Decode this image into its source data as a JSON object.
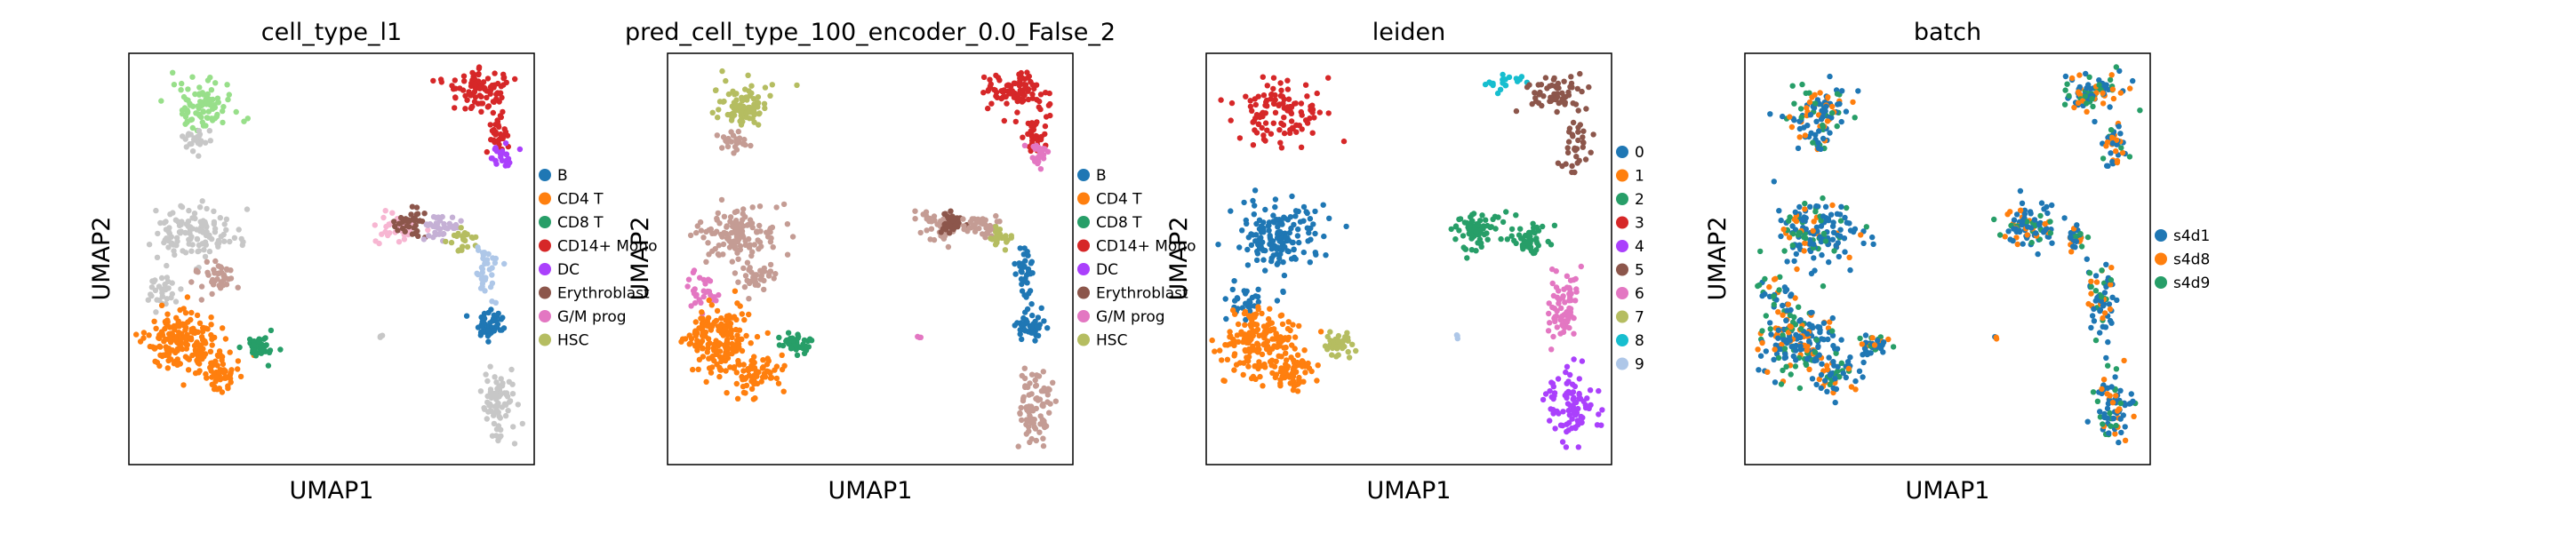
{
  "figure": {
    "background": "#ffffff"
  },
  "chart_data": [
    {
      "type": "scatter",
      "title": "cell_type_l1",
      "xlabel": "UMAP1",
      "ylabel": "UMAP2",
      "grid": false,
      "legend_position": "right",
      "legend": [
        {
          "label": "B",
          "color": "#1f77b4"
        },
        {
          "label": "CD4 T",
          "color": "#ff7f0e"
        },
        {
          "label": "CD8 T",
          "color": "#279e68"
        },
        {
          "label": "CD14+ Mono",
          "color": "#d62728"
        },
        {
          "label": "DC",
          "color": "#aa40fc"
        },
        {
          "label": "Erythroblast",
          "color": "#8c564b"
        },
        {
          "label": "G/M prog",
          "color": "#e377c2"
        },
        {
          "label": "HSC",
          "color": "#b5bd61"
        }
      ],
      "clusters": [
        {
          "x": 0.18,
          "y": 0.87,
          "rx": 0.09,
          "ry": 0.06,
          "color": "#98df8a",
          "n": 90
        },
        {
          "x": 0.17,
          "y": 0.79,
          "rx": 0.04,
          "ry": 0.03,
          "color": "#c7c7c7",
          "n": 25
        },
        {
          "x": 0.86,
          "y": 0.91,
          "rx": 0.09,
          "ry": 0.05,
          "color": "#d62728",
          "n": 90
        },
        {
          "x": 0.91,
          "y": 0.8,
          "rx": 0.04,
          "ry": 0.06,
          "color": "#d62728",
          "n": 35
        },
        {
          "x": 0.92,
          "y": 0.75,
          "rx": 0.03,
          "ry": 0.04,
          "color": "#aa40fc",
          "n": 25
        },
        {
          "x": 0.17,
          "y": 0.56,
          "rx": 0.11,
          "ry": 0.07,
          "color": "#c7c7c7",
          "n": 120
        },
        {
          "x": 0.22,
          "y": 0.46,
          "rx": 0.06,
          "ry": 0.04,
          "color": "#c49c94",
          "n": 40
        },
        {
          "x": 0.08,
          "y": 0.42,
          "rx": 0.05,
          "ry": 0.05,
          "color": "#c7c7c7",
          "n": 30
        },
        {
          "x": 0.13,
          "y": 0.3,
          "rx": 0.1,
          "ry": 0.09,
          "color": "#ff7f0e",
          "n": 170
        },
        {
          "x": 0.22,
          "y": 0.22,
          "rx": 0.07,
          "ry": 0.05,
          "color": "#ff7f0e",
          "n": 60
        },
        {
          "x": 0.32,
          "y": 0.29,
          "rx": 0.04,
          "ry": 0.03,
          "color": "#279e68",
          "n": 40
        },
        {
          "x": 0.67,
          "y": 0.58,
          "rx": 0.06,
          "ry": 0.04,
          "color": "#f7b6d2",
          "n": 45
        },
        {
          "x": 0.7,
          "y": 0.59,
          "rx": 0.04,
          "ry": 0.04,
          "color": "#8c564b",
          "n": 35
        },
        {
          "x": 0.77,
          "y": 0.58,
          "rx": 0.05,
          "ry": 0.03,
          "color": "#c5b0d5",
          "n": 40
        },
        {
          "x": 0.82,
          "y": 0.55,
          "rx": 0.04,
          "ry": 0.03,
          "color": "#b5bd61",
          "n": 25
        },
        {
          "x": 0.88,
          "y": 0.47,
          "rx": 0.03,
          "ry": 0.07,
          "color": "#aec7e8",
          "n": 35
        },
        {
          "x": 0.89,
          "y": 0.34,
          "rx": 0.04,
          "ry": 0.04,
          "color": "#1f77b4",
          "n": 45
        },
        {
          "x": 0.91,
          "y": 0.14,
          "rx": 0.05,
          "ry": 0.09,
          "color": "#c7c7c7",
          "n": 80
        },
        {
          "x": 0.62,
          "y": 0.31,
          "rx": 0.006,
          "ry": 0.006,
          "color": "#c7c7c7",
          "n": 3
        }
      ]
    },
    {
      "type": "scatter",
      "title": "pred_cell_type_100_encoder_0.0_False_2",
      "xlabel": "UMAP1",
      "ylabel": "UMAP2",
      "grid": false,
      "legend_position": "right",
      "legend": [
        {
          "label": "B",
          "color": "#1f77b4"
        },
        {
          "label": "CD4 T",
          "color": "#ff7f0e"
        },
        {
          "label": "CD8 T",
          "color": "#279e68"
        },
        {
          "label": "CD14+ Mono",
          "color": "#d62728"
        },
        {
          "label": "DC",
          "color": "#aa40fc"
        },
        {
          "label": "Erythroblast",
          "color": "#8c564b"
        },
        {
          "label": "G/M prog",
          "color": "#e377c2"
        },
        {
          "label": "HSC",
          "color": "#b5bd61"
        }
      ],
      "clusters": [
        {
          "x": 0.18,
          "y": 0.87,
          "rx": 0.09,
          "ry": 0.06,
          "color": "#b5bd61",
          "n": 90
        },
        {
          "x": 0.17,
          "y": 0.79,
          "rx": 0.04,
          "ry": 0.03,
          "color": "#c49c94",
          "n": 25
        },
        {
          "x": 0.86,
          "y": 0.91,
          "rx": 0.09,
          "ry": 0.05,
          "color": "#d62728",
          "n": 90
        },
        {
          "x": 0.91,
          "y": 0.8,
          "rx": 0.04,
          "ry": 0.06,
          "color": "#d62728",
          "n": 35
        },
        {
          "x": 0.92,
          "y": 0.75,
          "rx": 0.03,
          "ry": 0.04,
          "color": "#e377c2",
          "n": 25
        },
        {
          "x": 0.17,
          "y": 0.56,
          "rx": 0.11,
          "ry": 0.07,
          "color": "#c49c94",
          "n": 120
        },
        {
          "x": 0.22,
          "y": 0.46,
          "rx": 0.06,
          "ry": 0.04,
          "color": "#c49c94",
          "n": 40
        },
        {
          "x": 0.08,
          "y": 0.42,
          "rx": 0.05,
          "ry": 0.05,
          "color": "#e377c2",
          "n": 30
        },
        {
          "x": 0.13,
          "y": 0.3,
          "rx": 0.1,
          "ry": 0.09,
          "color": "#ff7f0e",
          "n": 170
        },
        {
          "x": 0.22,
          "y": 0.22,
          "rx": 0.07,
          "ry": 0.05,
          "color": "#ff7f0e",
          "n": 60
        },
        {
          "x": 0.32,
          "y": 0.29,
          "rx": 0.04,
          "ry": 0.03,
          "color": "#279e68",
          "n": 40
        },
        {
          "x": 0.67,
          "y": 0.58,
          "rx": 0.06,
          "ry": 0.04,
          "color": "#c49c94",
          "n": 45
        },
        {
          "x": 0.7,
          "y": 0.59,
          "rx": 0.04,
          "ry": 0.04,
          "color": "#8c564b",
          "n": 35
        },
        {
          "x": 0.77,
          "y": 0.58,
          "rx": 0.05,
          "ry": 0.03,
          "color": "#c49c94",
          "n": 40
        },
        {
          "x": 0.82,
          "y": 0.55,
          "rx": 0.04,
          "ry": 0.03,
          "color": "#b5bd61",
          "n": 25
        },
        {
          "x": 0.88,
          "y": 0.47,
          "rx": 0.03,
          "ry": 0.07,
          "color": "#1f77b4",
          "n": 35
        },
        {
          "x": 0.89,
          "y": 0.34,
          "rx": 0.04,
          "ry": 0.04,
          "color": "#1f77b4",
          "n": 45
        },
        {
          "x": 0.91,
          "y": 0.14,
          "rx": 0.05,
          "ry": 0.09,
          "color": "#c49c94",
          "n": 80
        },
        {
          "x": 0.62,
          "y": 0.31,
          "rx": 0.006,
          "ry": 0.006,
          "color": "#e377c2",
          "n": 3
        }
      ]
    },
    {
      "type": "scatter",
      "title": "leiden",
      "xlabel": "UMAP1",
      "ylabel": "UMAP2",
      "grid": false,
      "legend_position": "right",
      "legend": [
        {
          "label": "0",
          "color": "#1f77b4"
        },
        {
          "label": "1",
          "color": "#ff7f0e"
        },
        {
          "label": "2",
          "color": "#279e68"
        },
        {
          "label": "3",
          "color": "#d62728"
        },
        {
          "label": "4",
          "color": "#aa40fc"
        },
        {
          "label": "5",
          "color": "#8c564b"
        },
        {
          "label": "6",
          "color": "#e377c2"
        },
        {
          "label": "7",
          "color": "#b5bd61"
        },
        {
          "label": "8",
          "color": "#17becf"
        },
        {
          "label": "9",
          "color": "#aec7e8"
        }
      ],
      "clusters": [
        {
          "x": 0.18,
          "y": 0.85,
          "rx": 0.12,
          "ry": 0.08,
          "color": "#d62728",
          "n": 110
        },
        {
          "x": 0.74,
          "y": 0.93,
          "rx": 0.07,
          "ry": 0.02,
          "color": "#17becf",
          "n": 20
        },
        {
          "x": 0.86,
          "y": 0.9,
          "rx": 0.07,
          "ry": 0.05,
          "color": "#8c564b",
          "n": 60
        },
        {
          "x": 0.91,
          "y": 0.78,
          "rx": 0.04,
          "ry": 0.07,
          "color": "#8c564b",
          "n": 35
        },
        {
          "x": 0.17,
          "y": 0.55,
          "rx": 0.12,
          "ry": 0.09,
          "color": "#1f77b4",
          "n": 150
        },
        {
          "x": 0.1,
          "y": 0.4,
          "rx": 0.05,
          "ry": 0.05,
          "color": "#1f77b4",
          "n": 30
        },
        {
          "x": 0.13,
          "y": 0.3,
          "rx": 0.1,
          "ry": 0.09,
          "color": "#ff7f0e",
          "n": 170
        },
        {
          "x": 0.22,
          "y": 0.22,
          "rx": 0.07,
          "ry": 0.05,
          "color": "#ff7f0e",
          "n": 60
        },
        {
          "x": 0.32,
          "y": 0.29,
          "rx": 0.04,
          "ry": 0.03,
          "color": "#b5bd61",
          "n": 40
        },
        {
          "x": 0.66,
          "y": 0.57,
          "rx": 0.07,
          "ry": 0.05,
          "color": "#279e68",
          "n": 70
        },
        {
          "x": 0.8,
          "y": 0.55,
          "rx": 0.06,
          "ry": 0.04,
          "color": "#279e68",
          "n": 45
        },
        {
          "x": 0.88,
          "y": 0.38,
          "rx": 0.04,
          "ry": 0.11,
          "color": "#e377c2",
          "n": 70
        },
        {
          "x": 0.9,
          "y": 0.15,
          "rx": 0.06,
          "ry": 0.09,
          "color": "#aa40fc",
          "n": 90
        },
        {
          "x": 0.62,
          "y": 0.31,
          "rx": 0.006,
          "ry": 0.006,
          "color": "#aec7e8",
          "n": 3
        }
      ]
    },
    {
      "type": "scatter",
      "title": "batch",
      "xlabel": "UMAP1",
      "ylabel": "UMAP2",
      "grid": false,
      "legend_position": "right",
      "legend": [
        {
          "label": "s4d1",
          "color": "#1f77b4"
        },
        {
          "label": "s4d8",
          "color": "#ff7f0e"
        },
        {
          "label": "s4d9",
          "color": "#279e68"
        }
      ],
      "mix": [
        {
          "color": "#1f77b4",
          "weight": 0.55
        },
        {
          "color": "#ff7f0e",
          "weight": 0.25
        },
        {
          "color": "#279e68",
          "weight": 0.2
        }
      ],
      "clusters": [
        {
          "x": 0.18,
          "y": 0.87,
          "rx": 0.09,
          "ry": 0.06,
          "n": 90
        },
        {
          "x": 0.17,
          "y": 0.79,
          "rx": 0.04,
          "ry": 0.03,
          "n": 25
        },
        {
          "x": 0.86,
          "y": 0.91,
          "rx": 0.09,
          "ry": 0.05,
          "n": 90
        },
        {
          "x": 0.91,
          "y": 0.78,
          "rx": 0.04,
          "ry": 0.07,
          "n": 40
        },
        {
          "x": 0.17,
          "y": 0.56,
          "rx": 0.11,
          "ry": 0.08,
          "n": 150
        },
        {
          "x": 0.08,
          "y": 0.42,
          "rx": 0.05,
          "ry": 0.05,
          "n": 30
        },
        {
          "x": 0.13,
          "y": 0.3,
          "rx": 0.1,
          "ry": 0.09,
          "n": 170
        },
        {
          "x": 0.22,
          "y": 0.22,
          "rx": 0.07,
          "ry": 0.05,
          "n": 60
        },
        {
          "x": 0.32,
          "y": 0.29,
          "rx": 0.04,
          "ry": 0.03,
          "n": 40
        },
        {
          "x": 0.7,
          "y": 0.58,
          "rx": 0.08,
          "ry": 0.05,
          "n": 90
        },
        {
          "x": 0.82,
          "y": 0.55,
          "rx": 0.04,
          "ry": 0.03,
          "n": 25
        },
        {
          "x": 0.88,
          "y": 0.4,
          "rx": 0.04,
          "ry": 0.1,
          "n": 70
        },
        {
          "x": 0.91,
          "y": 0.14,
          "rx": 0.05,
          "ry": 0.09,
          "n": 80
        },
        {
          "x": 0.62,
          "y": 0.31,
          "rx": 0.006,
          "ry": 0.006,
          "n": 3
        }
      ]
    }
  ]
}
